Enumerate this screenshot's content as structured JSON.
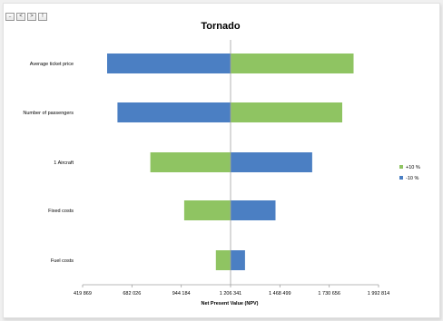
{
  "nav": {
    "buttons": [
      {
        "label": "..",
        "name": "nav-first-button"
      },
      {
        "label": "<",
        "name": "nav-prev-button"
      },
      {
        "label": ">",
        "name": "nav-next-button"
      },
      {
        "label": "!",
        "name": "nav-last-button"
      }
    ]
  },
  "chart_data": {
    "type": "bar",
    "orientation": "horizontal",
    "title": "Tornado",
    "xlabel": "Net Present Value (NPV)",
    "ylabel": "",
    "base_value": 1206341,
    "xlim": [
      419869,
      1992814
    ],
    "x_ticks": [
      419869,
      682026,
      944184,
      1206341,
      1468499,
      1730656,
      1992814
    ],
    "x_tick_labels": [
      "419 869",
      "682 026",
      "944 184",
      "1 206 341",
      "1 468 499",
      "1 730 656",
      "1 992 814"
    ],
    "categories": [
      "Average ticket price",
      "Number of passengers",
      "1 Aircraft",
      "Fixed costs",
      "Fuel costs"
    ],
    "series": [
      {
        "name": "+10 %",
        "color": "#8fc462",
        "values": [
          1860000,
          1800000,
          780000,
          960000,
          1128000
        ]
      },
      {
        "name": "-10 %",
        "color": "#4b7fc3",
        "values": [
          550000,
          605000,
          1640000,
          1445000,
          1283000
        ]
      }
    ],
    "legend_position": "right",
    "grid": false
  }
}
